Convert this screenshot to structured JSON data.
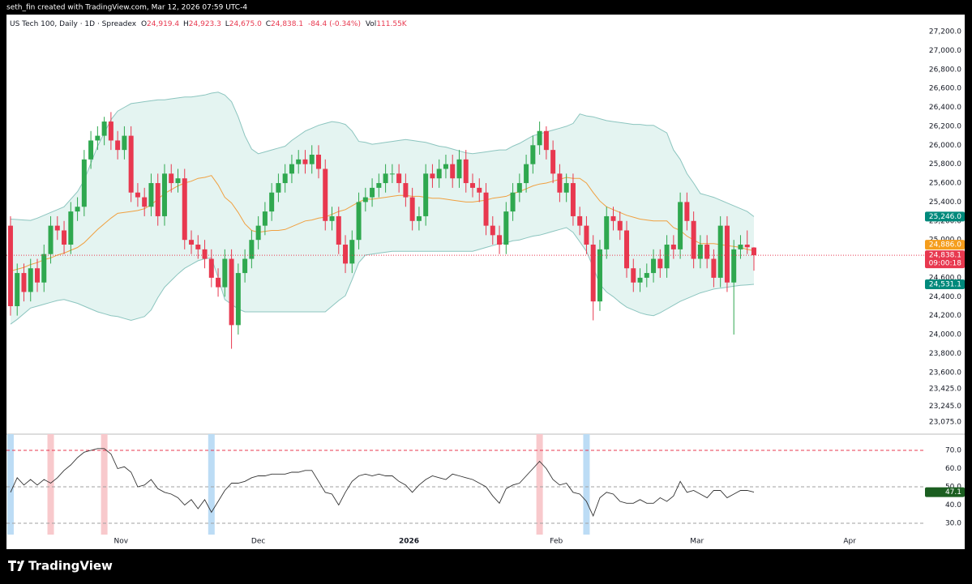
{
  "page": {
    "credit": "seth_fin created with TradingView.com, Mar 12, 2026 07:59 UTC-4",
    "brand": "TradingView"
  },
  "chart_data": [
    {
      "type": "candlestick",
      "title": "US Tech 100, Daily · 1D · Spreadex",
      "ohlc_legend": [
        {
          "key": "O",
          "text": "24,919.4"
        },
        {
          "key": "H",
          "text": "24,923.3"
        },
        {
          "key": "L",
          "text": "24,675.0"
        },
        {
          "key": "C",
          "text": "24,838.1"
        }
      ],
      "change_text": "-84.4 (-0.34%)",
      "volume_key": "Vol",
      "volume_text": "111.55K",
      "up_color": "#2fa84f",
      "down_color": "#e8384f",
      "open": [
        25150,
        24300,
        24650,
        24450,
        24700,
        24550,
        24850,
        25150,
        25100,
        24950,
        25300,
        25350,
        25850,
        26050,
        26100,
        26250,
        26050,
        25950,
        26100,
        25500,
        25450,
        25350,
        25600,
        25250,
        25700,
        25600,
        25650,
        25000,
        24950,
        24900,
        24800,
        24600,
        24500,
        24800,
        24100,
        24650,
        24800,
        25000,
        25150,
        25300,
        25500,
        25600,
        25700,
        25800,
        25850,
        25800,
        25900,
        25750,
        25200,
        25250,
        24950,
        24750,
        25000,
        25400,
        25450,
        25550,
        25600,
        25700,
        25700,
        25600,
        25450,
        25200,
        25250,
        25700,
        25650,
        25750,
        25800,
        25650,
        25850,
        25600,
        25550,
        25500,
        25150,
        25050,
        24950,
        25300,
        25500,
        25600,
        25800,
        26000,
        26150,
        25950,
        25700,
        25500,
        25600,
        25250,
        25150,
        24950,
        24350,
        24900,
        25250,
        25200,
        25100,
        24700,
        24550,
        24600,
        24650,
        24800,
        24700,
        24950,
        24900,
        25400,
        25200,
        24800,
        24950,
        24800,
        24600,
        25150,
        24550,
        24900,
        24950,
        24919.4
      ],
      "high": [
        25250,
        24750,
        24750,
        24800,
        24800,
        24950,
        25250,
        25250,
        25200,
        25400,
        25450,
        25950,
        26150,
        26200,
        26300,
        26350,
        26150,
        26200,
        26200,
        25600,
        25550,
        25700,
        25700,
        25800,
        25800,
        25750,
        25750,
        25100,
        25050,
        25000,
        24900,
        24700,
        24900,
        24900,
        24750,
        24900,
        25100,
        25250,
        25400,
        25600,
        25700,
        25800,
        25900,
        25950,
        25950,
        26000,
        26000,
        25850,
        25350,
        25350,
        25050,
        25100,
        25500,
        25550,
        25650,
        25700,
        25800,
        25800,
        25800,
        25700,
        25550,
        25350,
        25800,
        25800,
        25850,
        25900,
        25900,
        25950,
        25950,
        25700,
        25650,
        25600,
        25250,
        25150,
        25400,
        25600,
        25700,
        25900,
        26100,
        26250,
        26200,
        26050,
        25800,
        25700,
        25700,
        25350,
        25250,
        25050,
        25000,
        25350,
        25350,
        25300,
        25200,
        24800,
        24700,
        24750,
        24900,
        24900,
        25050,
        25050,
        25500,
        25500,
        25300,
        25050,
        25050,
        24900,
        25250,
        25250,
        25000,
        25050,
        25100,
        24923.3
      ],
      "low": [
        24200,
        24200,
        24350,
        24350,
        24450,
        24450,
        24750,
        25000,
        24850,
        24850,
        25200,
        25250,
        25750,
        25950,
        26000,
        25950,
        25850,
        25850,
        25400,
        25350,
        25250,
        25250,
        25150,
        25150,
        25500,
        25500,
        24900,
        24850,
        24800,
        24700,
        24500,
        24400,
        24400,
        23850,
        24000,
        24550,
        24700,
        24900,
        25050,
        25200,
        25400,
        25500,
        25600,
        25700,
        25700,
        25700,
        25650,
        25100,
        25100,
        24850,
        24650,
        24650,
        24900,
        25300,
        25350,
        25450,
        25500,
        25600,
        25500,
        25350,
        25100,
        25100,
        25150,
        25550,
        25550,
        25650,
        25550,
        25550,
        25500,
        25450,
        25400,
        25050,
        24950,
        24850,
        24850,
        25200,
        25400,
        25500,
        25700,
        25900,
        25850,
        25600,
        25400,
        25400,
        25150,
        25050,
        24850,
        24150,
        24250,
        24800,
        25100,
        25000,
        24600,
        24450,
        24450,
        24500,
        24550,
        24600,
        24600,
        24800,
        24800,
        25100,
        24700,
        24700,
        24700,
        24500,
        24500,
        24450,
        24000,
        24800,
        24850,
        24675
      ],
      "close": [
        24300,
        24650,
        24450,
        24700,
        24550,
        24850,
        25150,
        25100,
        24950,
        25300,
        25350,
        25850,
        26050,
        26100,
        26250,
        26050,
        25950,
        26100,
        25500,
        25450,
        25350,
        25600,
        25250,
        25700,
        25600,
        25650,
        25000,
        24950,
        24900,
        24800,
        24600,
        24500,
        24800,
        24100,
        24650,
        24800,
        25000,
        25150,
        25300,
        25500,
        25600,
        25700,
        25800,
        25850,
        25800,
        25900,
        25750,
        25200,
        25250,
        24950,
        24750,
        25000,
        25400,
        25450,
        25550,
        25600,
        25700,
        25700,
        25600,
        25450,
        25200,
        25250,
        25700,
        25650,
        25750,
        25800,
        25650,
        25850,
        25600,
        25550,
        25500,
        25150,
        25050,
        24950,
        25300,
        25500,
        25600,
        25800,
        26000,
        26150,
        25950,
        25700,
        25500,
        25600,
        25250,
        25150,
        24950,
        24350,
        24900,
        25250,
        25200,
        25100,
        24700,
        24550,
        24600,
        24650,
        24800,
        24700,
        24950,
        24900,
        25400,
        25200,
        24800,
        24950,
        24800,
        24600,
        25150,
        24550,
        24900,
        24950,
        24922.5,
        24838.1
      ],
      "close_label": "24,838.1",
      "countdown": "09:00:18",
      "close_line_color": "#e8384f",
      "band_fill": "#e4f4f1",
      "series": [
        {
          "color": "#8cc5bf",
          "label_color": "#00897b",
          "last_label": "25,246.0",
          "values": [
            25220,
            25215,
            25210,
            25206,
            25230,
            25260,
            25290,
            25320,
            25350,
            25430,
            25510,
            25630,
            25810,
            25990,
            26130,
            26270,
            26360,
            26400,
            26440,
            26450,
            26460,
            26470,
            26480,
            26480,
            26490,
            26500,
            26510,
            26510,
            26520,
            26530,
            26550,
            26560,
            26530,
            26460,
            26300,
            26100,
            25960,
            25910,
            25930,
            25950,
            25970,
            25990,
            26050,
            26100,
            26150,
            26180,
            26210,
            26230,
            26250,
            26240,
            26220,
            26150,
            26040,
            26030,
            26010,
            26020,
            26030,
            26040,
            26050,
            26060,
            26050,
            26040,
            26030,
            26010,
            25990,
            25980,
            25960,
            25940,
            25920,
            25910,
            25920,
            25930,
            25940,
            25950,
            25950,
            25990,
            26020,
            26060,
            26100,
            26120,
            26140,
            26160,
            26180,
            26200,
            26230,
            26330,
            26310,
            26300,
            26280,
            26260,
            26250,
            26240,
            26230,
            26220,
            26220,
            26210,
            26210,
            26170,
            26130,
            25950,
            25850,
            25700,
            25600,
            25490,
            25470,
            25450,
            25420,
            25390,
            25360,
            25330,
            25300,
            25246
          ]
        },
        {
          "color": "#f0a040",
          "label_color": "#f59d1c",
          "last_label": "24,886.0",
          "values": [
            24670,
            24690,
            24710,
            24740,
            24760,
            24790,
            24810,
            24840,
            24860,
            24890,
            24920,
            24970,
            25040,
            25110,
            25170,
            25230,
            25280,
            25290,
            25300,
            25310,
            25330,
            25370,
            25430,
            25490,
            25530,
            25570,
            25600,
            25620,
            25650,
            25660,
            25680,
            25580,
            25450,
            25390,
            25290,
            25170,
            25100,
            25080,
            25090,
            25100,
            25100,
            25110,
            25140,
            25170,
            25200,
            25210,
            25230,
            25240,
            25270,
            25300,
            25320,
            25360,
            25400,
            25430,
            25430,
            25440,
            25450,
            25460,
            25470,
            25470,
            25460,
            25460,
            25450,
            25440,
            25440,
            25430,
            25420,
            25410,
            25400,
            25400,
            25410,
            25420,
            25440,
            25450,
            25460,
            25490,
            25510,
            25540,
            25570,
            25590,
            25600,
            25620,
            25640,
            25660,
            25650,
            25650,
            25600,
            25500,
            25410,
            25350,
            25320,
            25290,
            25260,
            25240,
            25220,
            25210,
            25200,
            25200,
            25200,
            25130,
            25100,
            25040,
            25000,
            24960,
            24960,
            24960,
            24950,
            24940,
            24930,
            24920,
            24900,
            24886
          ]
        },
        {
          "color": "#8cc5bf",
          "label_color": "#00897b",
          "last_label": "24,531.1",
          "values": [
            24110,
            24160,
            24220,
            24280,
            24300,
            24320,
            24340,
            24360,
            24370,
            24350,
            24330,
            24300,
            24270,
            24240,
            24220,
            24200,
            24190,
            24170,
            24150,
            24170,
            24190,
            24260,
            24390,
            24500,
            24570,
            24640,
            24700,
            24740,
            24780,
            24800,
            24810,
            24600,
            24370,
            24320,
            24270,
            24240,
            24240,
            24240,
            24240,
            24240,
            24240,
            24240,
            24240,
            24240,
            24240,
            24240,
            24240,
            24240,
            24300,
            24360,
            24410,
            24580,
            24760,
            24840,
            24850,
            24860,
            24870,
            24880,
            24880,
            24880,
            24880,
            24880,
            24880,
            24880,
            24880,
            24880,
            24880,
            24880,
            24880,
            24880,
            24900,
            24920,
            24940,
            24960,
            24970,
            24990,
            25000,
            25020,
            25040,
            25050,
            25070,
            25090,
            25110,
            25130,
            25080,
            24980,
            24880,
            24710,
            24530,
            24450,
            24400,
            24340,
            24290,
            24260,
            24230,
            24210,
            24200,
            24230,
            24270,
            24310,
            24350,
            24380,
            24410,
            24440,
            24460,
            24480,
            24490,
            24500,
            24510,
            24520,
            24525,
            24531.1
          ]
        }
      ],
      "xlim": [
        -0.6,
        134
      ],
      "ylim": [
        22948,
        27380
      ],
      "yticks": [
        {
          "value": 27200,
          "label": "27,200.0"
        },
        {
          "value": 27000,
          "label": "27,000.0"
        },
        {
          "value": 26800,
          "label": "26,800.0"
        },
        {
          "value": 26600,
          "label": "26,600.0"
        },
        {
          "value": 26400,
          "label": "26,400.0"
        },
        {
          "value": 26200,
          "label": "26,200.0"
        },
        {
          "value": 26000,
          "label": "26,000.0"
        },
        {
          "value": 25800,
          "label": "25,800.0"
        },
        {
          "value": 25600,
          "label": "25,600.0"
        },
        {
          "value": 25400,
          "label": "25,400.0"
        },
        {
          "value": 25200,
          "label": "25,200.0"
        },
        {
          "value": 25000,
          "label": "25,000.0"
        },
        {
          "value": 24600,
          "label": "24,600.0"
        },
        {
          "value": 24400,
          "label": "24,400.0"
        },
        {
          "value": 24200,
          "label": "24,200.0"
        },
        {
          "value": 24000,
          "label": "24,000.0"
        },
        {
          "value": 23800,
          "label": "23,800.0"
        },
        {
          "value": 23600,
          "label": "23,600.0"
        },
        {
          "value": 23425,
          "label": "23,425.0"
        },
        {
          "value": 23245,
          "label": "23,245.0"
        },
        {
          "value": 23075,
          "label": "23,075.0"
        }
      ],
      "grid": false
    },
    {
      "type": "line",
      "series": [
        {
          "color": "#333333",
          "label_color": "#1b5e20",
          "last_label": "47.1",
          "values": [
            47,
            55,
            51,
            54,
            51,
            54,
            52,
            55,
            59,
            62,
            66,
            69,
            70,
            71,
            71,
            68,
            60,
            61,
            58,
            50,
            51,
            54,
            49,
            47,
            46,
            44,
            40,
            43,
            38,
            43,
            36,
            42,
            48,
            52,
            52,
            53,
            55,
            56,
            56,
            57,
            57,
            57,
            58,
            58,
            59,
            59,
            53,
            47,
            46,
            40,
            47,
            53,
            56,
            57,
            56,
            57,
            56,
            56,
            53,
            51,
            47,
            51,
            54,
            56,
            55,
            54,
            57,
            56,
            55,
            54,
            52,
            50,
            45,
            41,
            49,
            51,
            52,
            56,
            60,
            64,
            60,
            54,
            51,
            52,
            47,
            46,
            42,
            34,
            44,
            47,
            46,
            42,
            41,
            41,
            43,
            41,
            41,
            44,
            42,
            45,
            53,
            47,
            48,
            46,
            44,
            48,
            48,
            44,
            46,
            48,
            48,
            47.1
          ]
        }
      ],
      "levels": [
        {
          "value": 70,
          "color": "#e8384f"
        },
        {
          "value": 50,
          "color": "#a0a0a0"
        },
        {
          "value": 30,
          "color": "#a0a0a0"
        }
      ],
      "highlights": [
        {
          "bar": 0,
          "color": "#bcdcf5"
        },
        {
          "bar": 6,
          "color": "#f8c9cc"
        },
        {
          "bar": 14,
          "color": "#f8c9cc"
        },
        {
          "bar": 30,
          "color": "#bcdcf5"
        },
        {
          "bar": 79,
          "color": "#f8c9cc"
        },
        {
          "bar": 86,
          "color": "#bcdcf5"
        }
      ],
      "xlim": [
        -0.6,
        134
      ],
      "ylim": [
        23.8,
        78.9
      ],
      "yticks": [
        {
          "value": 70,
          "label": "70.0"
        },
        {
          "value": 60,
          "label": "60.0"
        },
        {
          "value": 50,
          "label": "50.0"
        },
        {
          "value": 40,
          "label": "40.0"
        },
        {
          "value": 30,
          "label": "30.0"
        }
      ],
      "xticks": [
        {
          "value": 16.5,
          "label": "Nov"
        },
        {
          "value": 37,
          "label": "Dec"
        },
        {
          "value": 59.5,
          "label": "2026"
        },
        {
          "value": 81.5,
          "label": "Feb"
        },
        {
          "value": 102.5,
          "label": "Mar"
        },
        {
          "value": 125.3,
          "label": "Apr"
        }
      ],
      "grid": false
    }
  ]
}
